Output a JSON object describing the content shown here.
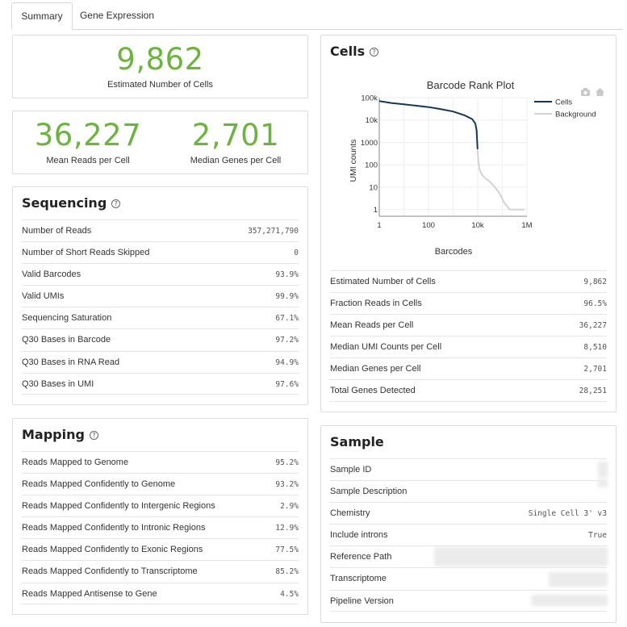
{
  "tabs": [
    {
      "label": "Summary",
      "active": true
    },
    {
      "label": "Gene Expression",
      "active": false
    }
  ],
  "cells_estimate": {
    "value": "9,862",
    "label": "Estimated Number of Cells"
  },
  "reads_genes": {
    "mean_reads_value": "36,227",
    "mean_reads_label": "Mean Reads per Cell",
    "median_genes_value": "2,701",
    "median_genes_label": "Median Genes per Cell"
  },
  "sequencing": {
    "title": "Sequencing",
    "rows": [
      {
        "label": "Number of Reads",
        "value": "357,271,790"
      },
      {
        "label": "Number of Short Reads Skipped",
        "value": "0"
      },
      {
        "label": "Valid Barcodes",
        "value": "93.9%"
      },
      {
        "label": "Valid UMIs",
        "value": "99.9%"
      },
      {
        "label": "Sequencing Saturation",
        "value": "67.1%"
      },
      {
        "label": "Q30 Bases in Barcode",
        "value": "97.2%"
      },
      {
        "label": "Q30 Bases in RNA Read",
        "value": "94.9%"
      },
      {
        "label": "Q30 Bases in UMI",
        "value": "97.6%"
      }
    ]
  },
  "mapping": {
    "title": "Mapping",
    "rows": [
      {
        "label": "Reads Mapped to Genome",
        "value": "95.2%"
      },
      {
        "label": "Reads Mapped Confidently to Genome",
        "value": "93.2%"
      },
      {
        "label": "Reads Mapped Confidently to Intergenic Regions",
        "value": "2.9%"
      },
      {
        "label": "Reads Mapped Confidently to Intronic Regions",
        "value": "12.9%"
      },
      {
        "label": "Reads Mapped Confidently to Exonic Regions",
        "value": "77.5%"
      },
      {
        "label": "Reads Mapped Confidently to Transcriptome",
        "value": "85.2%"
      },
      {
        "label": "Reads Mapped Antisense to Gene",
        "value": "4.5%"
      }
    ]
  },
  "cells": {
    "title": "Cells",
    "rows": [
      {
        "label": "Estimated Number of Cells",
        "value": "9,862"
      },
      {
        "label": "Fraction Reads in Cells",
        "value": "96.5%"
      },
      {
        "label": "Mean Reads per Cell",
        "value": "36,227"
      },
      {
        "label": "Median UMI Counts per Cell",
        "value": "8,510"
      },
      {
        "label": "Median Genes per Cell",
        "value": "2,701"
      },
      {
        "label": "Total Genes Detected",
        "value": "28,251"
      }
    ]
  },
  "sample": {
    "title": "Sample",
    "rows": [
      {
        "label": "Sample ID",
        "value": ""
      },
      {
        "label": "Sample Description",
        "value": ""
      },
      {
        "label": "Chemistry",
        "value": "Single Cell 3' v3"
      },
      {
        "label": "Include introns",
        "value": "True"
      },
      {
        "label": "Reference Path",
        "value": ""
      },
      {
        "label": "Transcriptome",
        "value": ""
      },
      {
        "label": "Pipeline Version",
        "value": ""
      }
    ]
  },
  "chart_data": {
    "type": "line",
    "title": "Barcode Rank Plot",
    "xlabel": "Barcodes",
    "ylabel": "UMI counts",
    "xscale": "log",
    "yscale": "log",
    "xlim": [
      1,
      1000000
    ],
    "ylim": [
      0.5,
      100000
    ],
    "x_tick_labels": [
      "1",
      "100",
      "10k",
      "1M"
    ],
    "y_tick_labels": [
      "1",
      "10",
      "100",
      "1000",
      "10k",
      "100k"
    ],
    "legend": "top-right",
    "grid": true,
    "series": [
      {
        "name": "Cells",
        "color": "#12375d",
        "x": [
          1,
          3,
          10,
          30,
          100,
          300,
          1000,
          3000,
          6000,
          8000,
          9000,
          9862
        ],
        "y": [
          70000,
          58000,
          50000,
          44000,
          38000,
          31000,
          24000,
          16000,
          11000,
          7000,
          3500,
          500
        ]
      },
      {
        "name": "Background",
        "color": "#d3d3d3",
        "x": [
          9862,
          10500,
          12000,
          15000,
          20000,
          30000,
          50000,
          80000,
          100000,
          120000,
          150000,
          200000,
          300000,
          500000,
          800000
        ],
        "y": [
          500,
          150,
          60,
          35,
          25,
          18,
          10,
          5,
          3,
          2,
          1.5,
          1,
          1,
          1,
          1
        ]
      }
    ]
  }
}
